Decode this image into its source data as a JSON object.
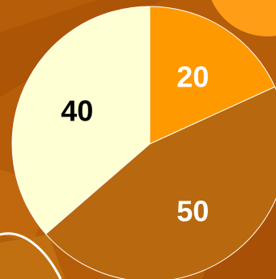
{
  "chart_data": {
    "type": "pie",
    "categories": [
      "",
      "",
      ""
    ],
    "values": [
      20,
      50,
      40
    ],
    "labels": [
      "20",
      "50",
      "40"
    ],
    "colors": [
      "#ff9900",
      "#b8680e",
      "#ffffd4"
    ],
    "label_colors": [
      "#ffffff",
      "#ffffff",
      "#000000"
    ],
    "start": "12 o'clock",
    "direction": "clockwise",
    "legend": "none",
    "title": ""
  },
  "background": {
    "colors": [
      "#b65d09",
      "#a44f06",
      "#c87214",
      "#ff9e16"
    ]
  }
}
